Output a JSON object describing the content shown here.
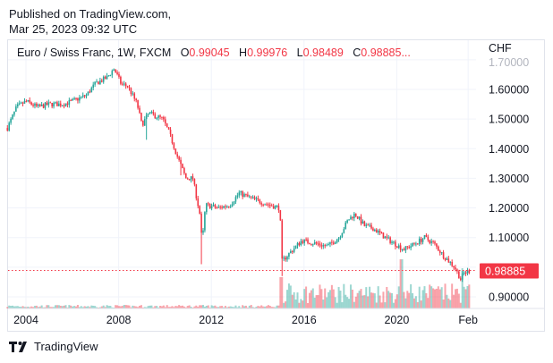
{
  "published": {
    "line1": "Published on TradingView.com,",
    "line2": "Mar 25, 2023 09:32 UTC"
  },
  "legend": {
    "symbol": "Euro / Swiss Franc, 1W, FXCM",
    "o_label": "O",
    "o": "0.99045",
    "h_label": "H",
    "h": "0.99976",
    "l_label": "L",
    "l": "0.98489",
    "c_label": "C",
    "c": "0.98885..."
  },
  "currency": "CHF",
  "last_price_badge": "0.98885",
  "footer": {
    "brand": "TradingView",
    "logo_icon": "tradingview-logo-icon"
  },
  "colors": {
    "up": "#26a69a",
    "down": "#f23645"
  },
  "chart_data": {
    "type": "candlestick",
    "title": "Euro / Swiss Franc, 1W, FXCM",
    "ylabel": "CHF",
    "ylim": [
      0.85,
      1.72
    ],
    "y_ticks": [
      "1.70000",
      "1.60000",
      "1.50000",
      "1.40000",
      "1.30000",
      "1.20000",
      "1.10000",
      "0.90000"
    ],
    "y_tick_values": [
      1.7,
      1.6,
      1.5,
      1.4,
      1.3,
      1.2,
      1.1,
      0.9
    ],
    "x_ticks": [
      "2004",
      "2008",
      "2012",
      "2016",
      "2020",
      "Feb"
    ],
    "x_tick_values": [
      2004,
      2008,
      2012,
      2016,
      2020,
      2023.08
    ],
    "xlim": [
      2003.2,
      2023.3
    ],
    "grid": true,
    "last": {
      "open": 0.99045,
      "high": 0.99976,
      "low": 0.98489,
      "close": 0.98885
    },
    "price_path": [
      [
        2003.2,
        1.47
      ],
      [
        2003.6,
        1.54
      ],
      [
        2004,
        1.56
      ],
      [
        2004.5,
        1.54
      ],
      [
        2005,
        1.55
      ],
      [
        2005.6,
        1.55
      ],
      [
        2006,
        1.56
      ],
      [
        2006.6,
        1.58
      ],
      [
        2007,
        1.62
      ],
      [
        2007.5,
        1.64
      ],
      [
        2007.8,
        1.67
      ],
      [
        2008.1,
        1.62
      ],
      [
        2008.4,
        1.61
      ],
      [
        2008.8,
        1.55
      ],
      [
        2009.0,
        1.48
      ],
      [
        2009.3,
        1.52
      ],
      [
        2009.9,
        1.5
      ],
      [
        2010.2,
        1.45
      ],
      [
        2010.5,
        1.38
      ],
      [
        2010.9,
        1.3
      ],
      [
        2011.2,
        1.3
      ],
      [
        2011.5,
        1.18
      ],
      [
        2011.6,
        1.08
      ],
      [
        2011.75,
        1.21
      ],
      [
        2012.3,
        1.2
      ],
      [
        2012.8,
        1.21
      ],
      [
        2013.2,
        1.25
      ],
      [
        2013.8,
        1.23
      ],
      [
        2014.5,
        1.21
      ],
      [
        2014.95,
        1.2
      ],
      [
        2015.05,
        1.02
      ],
      [
        2015.4,
        1.05
      ],
      [
        2015.9,
        1.09
      ],
      [
        2016.5,
        1.08
      ],
      [
        2017.0,
        1.07
      ],
      [
        2017.5,
        1.1
      ],
      [
        2017.9,
        1.16
      ],
      [
        2018.2,
        1.18
      ],
      [
        2018.6,
        1.14
      ],
      [
        2019.0,
        1.13
      ],
      [
        2019.5,
        1.1
      ],
      [
        2019.9,
        1.08
      ],
      [
        2020.3,
        1.06
      ],
      [
        2020.8,
        1.08
      ],
      [
        2021.2,
        1.1
      ],
      [
        2021.6,
        1.08
      ],
      [
        2022.0,
        1.04
      ],
      [
        2022.5,
        1.0
      ],
      [
        2022.75,
        0.96
      ],
      [
        2022.9,
        0.98
      ],
      [
        2023.2,
        0.99
      ]
    ],
    "spikes_low": [
      [
        2011.6,
        1.01
      ],
      [
        2015.05,
        0.97
      ],
      [
        2009.2,
        1.43
      ],
      [
        2010.7,
        1.31
      ]
    ]
  }
}
